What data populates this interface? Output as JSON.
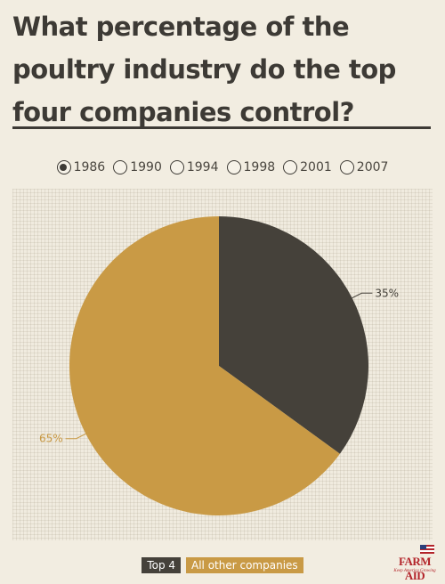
{
  "title": "What percentage of the poultry industry do the top four companies control?",
  "years": [
    {
      "label": "1986",
      "selected": true
    },
    {
      "label": "1990",
      "selected": false
    },
    {
      "label": "1994",
      "selected": false
    },
    {
      "label": "1998",
      "selected": false
    },
    {
      "label": "2001",
      "selected": false
    },
    {
      "label": "2007",
      "selected": false
    }
  ],
  "legend": [
    {
      "label": "Top 4",
      "color": "#45413a"
    },
    {
      "label": "All other companies",
      "color": "#c99a45"
    }
  ],
  "logo": {
    "text": "FARM AID",
    "tagline": "Keep America Growing"
  },
  "chart_data": {
    "type": "pie",
    "year": "1986",
    "slices": [
      {
        "name": "Top 4",
        "value": 35,
        "label": "35%",
        "color": "#45413a"
      },
      {
        "name": "All other companies",
        "value": 65,
        "label": "65%",
        "color": "#c99a45"
      }
    ]
  }
}
